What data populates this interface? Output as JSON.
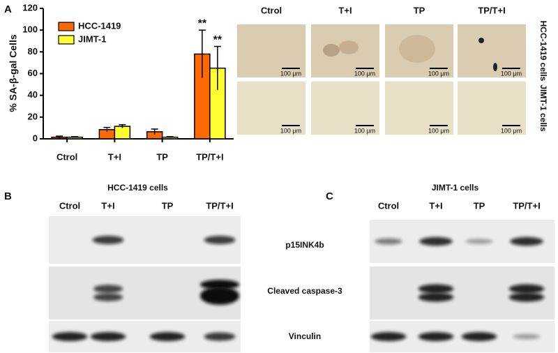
{
  "chart_data": {
    "type": "bar",
    "panel_label": "A",
    "ylabel": "% SA-β-gal Cells",
    "categories": [
      "Ctrol",
      "T+I",
      "TP",
      "TP/T+I"
    ],
    "series": [
      {
        "name": "HCC-1419",
        "color": "#ff6a00",
        "values": [
          1.5,
          8.5,
          6.5,
          78
        ],
        "errors": [
          1,
          2,
          2.5,
          22
        ],
        "value_annotations": [
          null,
          null,
          null,
          "**"
        ]
      },
      {
        "name": "JIMT-1",
        "color": "#ffff33",
        "values": [
          1.5,
          11.5,
          1.5,
          65
        ],
        "errors": [
          0.5,
          1.5,
          0.5,
          20
        ],
        "value_annotations": [
          null,
          null,
          null,
          "**"
        ]
      }
    ],
    "ylim": [
      0,
      120
    ],
    "yticks": [
      0,
      20,
      40,
      60,
      80,
      100,
      120
    ],
    "legend": "upper left"
  },
  "micrographs": {
    "columns": [
      "Ctrol",
      "T+I",
      "TP",
      "TP/T+I"
    ],
    "rows": [
      "HCC-1419 cells",
      "JIMT-1 cells"
    ],
    "scale_bars": [
      "100 μm",
      "100 μm",
      "100 μm",
      "100 μm",
      "100 μm",
      "100 μm",
      "100 μm",
      "100 μm"
    ]
  },
  "blots": {
    "proteins": [
      "p15INK4b",
      "Cleaved caspase-3",
      "Vinculin"
    ],
    "panels": [
      {
        "label": "B",
        "title": "HCC-1419 cells",
        "lanes": [
          "Ctrol",
          "T+I",
          "TP",
          "TP/T+I"
        ]
      },
      {
        "label": "C",
        "title": "JIMT-1 cells",
        "lanes": [
          "Ctrol",
          "T+I",
          "TP",
          "TP/T+I"
        ]
      }
    ]
  }
}
